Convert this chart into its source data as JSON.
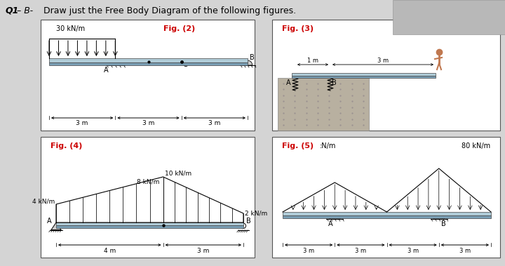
{
  "bg_color": "#d4d4d4",
  "box_face": "#ffffff",
  "box_edge": "#555555",
  "red": "#cc0000",
  "black": "#000000",
  "beam_top": "#b0ccd8",
  "beam_bot": "#7a9fb5",
  "cliff_color": "#bbbbbb",
  "fig2_title": "Fig. (2)",
  "fig3_title": "Fig. (3)",
  "fig4_title": "Fig. (4)",
  "fig5_title": "Fig. (5)",
  "load2": "30 kN/m",
  "load4_left": "4 kN/m",
  "load4_mid": "8 kN/m",
  "load4_peak": "10 kN/m",
  "load4_right": "2 kN/m",
  "load5_right": "80 kN/m",
  "dim_3m": "3 m",
  "dim_4m": "4 m"
}
